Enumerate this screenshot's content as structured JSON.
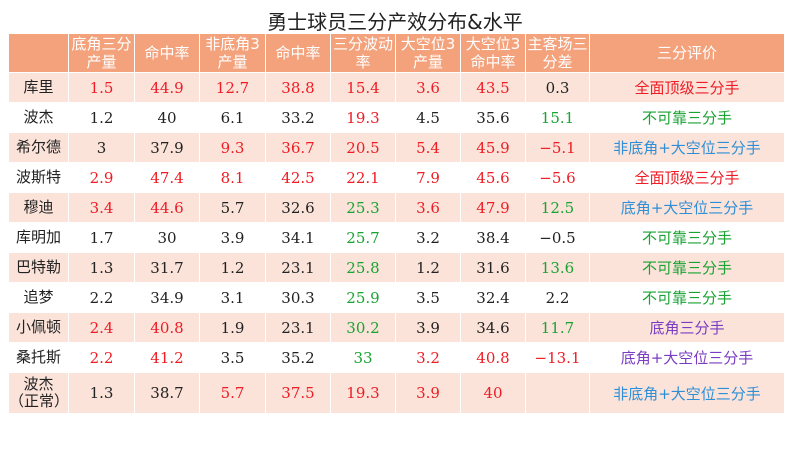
{
  "title": "勇士球员三分产效分布&水平",
  "headers": [
    "",
    "底角三分产量",
    "命中率",
    "非底角3产量",
    "命中率",
    "三分波动率",
    "大空位3产量",
    "大空位3命中率",
    "主客场三分差",
    "三分评价"
  ],
  "rows": [
    {
      "name": "库里",
      "cells": [
        {
          "v": "1.5",
          "c": "red"
        },
        {
          "v": "44.9",
          "c": "red"
        },
        {
          "v": "12.7",
          "c": "red"
        },
        {
          "v": "38.8",
          "c": "red"
        },
        {
          "v": "15.4",
          "c": "red"
        },
        {
          "v": "3.6",
          "c": "red"
        },
        {
          "v": "43.5",
          "c": "red"
        },
        {
          "v": "0.3",
          "c": "dark"
        }
      ],
      "eval": "全面顶级三分手",
      "evalColor": "red"
    },
    {
      "name": "波杰",
      "cells": [
        {
          "v": "1.2",
          "c": "dark"
        },
        {
          "v": "40",
          "c": "dark"
        },
        {
          "v": "6.1",
          "c": "dark"
        },
        {
          "v": "33.2",
          "c": "dark"
        },
        {
          "v": "19.3",
          "c": "red"
        },
        {
          "v": "4.5",
          "c": "dark"
        },
        {
          "v": "35.6",
          "c": "dark"
        },
        {
          "v": "15.1",
          "c": "green"
        }
      ],
      "eval": "不可靠三分手",
      "evalColor": "green"
    },
    {
      "name": "希尔德",
      "cells": [
        {
          "v": "3",
          "c": "dark"
        },
        {
          "v": "37.9",
          "c": "dark"
        },
        {
          "v": "9.3",
          "c": "red"
        },
        {
          "v": "36.7",
          "c": "red"
        },
        {
          "v": "20.5",
          "c": "red"
        },
        {
          "v": "5.4",
          "c": "red"
        },
        {
          "v": "45.9",
          "c": "red"
        },
        {
          "v": "−5.1",
          "c": "red"
        }
      ],
      "eval": "非底角+大空位三分手",
      "evalColor": "blue"
    },
    {
      "name": "波斯特",
      "cells": [
        {
          "v": "2.9",
          "c": "red"
        },
        {
          "v": "47.4",
          "c": "red"
        },
        {
          "v": "8.1",
          "c": "red"
        },
        {
          "v": "42.5",
          "c": "red"
        },
        {
          "v": "22.1",
          "c": "red"
        },
        {
          "v": "7.9",
          "c": "red"
        },
        {
          "v": "45.6",
          "c": "red"
        },
        {
          "v": "−5.6",
          "c": "red"
        }
      ],
      "eval": "全面顶级三分手",
      "evalColor": "red"
    },
    {
      "name": "穆迪",
      "cells": [
        {
          "v": "3.4",
          "c": "red"
        },
        {
          "v": "44.6",
          "c": "red"
        },
        {
          "v": "5.7",
          "c": "dark"
        },
        {
          "v": "32.6",
          "c": "dark"
        },
        {
          "v": "25.3",
          "c": "green"
        },
        {
          "v": "3.6",
          "c": "red"
        },
        {
          "v": "47.9",
          "c": "red"
        },
        {
          "v": "12.5",
          "c": "green"
        }
      ],
      "eval": "底角+大空位三分手",
      "evalColor": "blue"
    },
    {
      "name": "库明加",
      "cells": [
        {
          "v": "1.7",
          "c": "dark"
        },
        {
          "v": "30",
          "c": "dark"
        },
        {
          "v": "3.9",
          "c": "dark"
        },
        {
          "v": "34.1",
          "c": "dark"
        },
        {
          "v": "25.7",
          "c": "green"
        },
        {
          "v": "3.2",
          "c": "dark"
        },
        {
          "v": "38.4",
          "c": "dark"
        },
        {
          "v": "−0.5",
          "c": "dark"
        }
      ],
      "eval": "不可靠三分手",
      "evalColor": "green"
    },
    {
      "name": "巴特勒",
      "cells": [
        {
          "v": "1.3",
          "c": "dark"
        },
        {
          "v": "31.7",
          "c": "dark"
        },
        {
          "v": "1.2",
          "c": "dark"
        },
        {
          "v": "23.1",
          "c": "dark"
        },
        {
          "v": "25.8",
          "c": "green"
        },
        {
          "v": "1.2",
          "c": "dark"
        },
        {
          "v": "31.6",
          "c": "dark"
        },
        {
          "v": "13.6",
          "c": "green"
        }
      ],
      "eval": "不可靠三分手",
      "evalColor": "green"
    },
    {
      "name": "追梦",
      "cells": [
        {
          "v": "2.2",
          "c": "dark"
        },
        {
          "v": "34.9",
          "c": "dark"
        },
        {
          "v": "3.1",
          "c": "dark"
        },
        {
          "v": "30.3",
          "c": "dark"
        },
        {
          "v": "25.9",
          "c": "green"
        },
        {
          "v": "3.5",
          "c": "dark"
        },
        {
          "v": "32.4",
          "c": "dark"
        },
        {
          "v": "2.2",
          "c": "dark"
        }
      ],
      "eval": "不可靠三分手",
      "evalColor": "green"
    },
    {
      "name": "小佩顿",
      "cells": [
        {
          "v": "2.4",
          "c": "red"
        },
        {
          "v": "40.8",
          "c": "red"
        },
        {
          "v": "1.9",
          "c": "dark"
        },
        {
          "v": "23.1",
          "c": "dark"
        },
        {
          "v": "30.2",
          "c": "green"
        },
        {
          "v": "3.9",
          "c": "dark"
        },
        {
          "v": "34.6",
          "c": "dark"
        },
        {
          "v": "11.7",
          "c": "green"
        }
      ],
      "eval": "底角三分手",
      "evalColor": "purple"
    },
    {
      "name": "桑托斯",
      "cells": [
        {
          "v": "2.2",
          "c": "red"
        },
        {
          "v": "41.2",
          "c": "red"
        },
        {
          "v": "3.5",
          "c": "dark"
        },
        {
          "v": "35.2",
          "c": "dark"
        },
        {
          "v": "33",
          "c": "green"
        },
        {
          "v": "3.2",
          "c": "red"
        },
        {
          "v": "40.8",
          "c": "red"
        },
        {
          "v": "−13.1",
          "c": "red"
        }
      ],
      "eval": "底角+大空位三分手",
      "evalColor": "purple"
    },
    {
      "name": "波杰（正常）",
      "cells": [
        {
          "v": "1.3",
          "c": "dark"
        },
        {
          "v": "38.7",
          "c": "dark"
        },
        {
          "v": "5.7",
          "c": "red"
        },
        {
          "v": "37.5",
          "c": "red"
        },
        {
          "v": "19.3",
          "c": "red"
        },
        {
          "v": "3.9",
          "c": "red"
        },
        {
          "v": "40",
          "c": "red"
        },
        {
          "v": "",
          "c": "dark"
        }
      ],
      "eval": "非底角+大空位三分手",
      "evalColor": "blue"
    }
  ]
}
